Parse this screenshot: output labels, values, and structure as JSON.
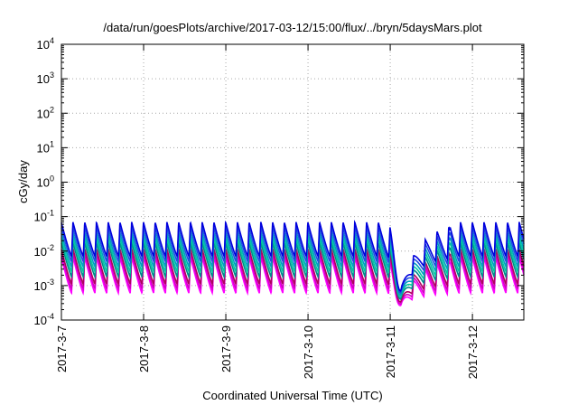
{
  "chart_data": {
    "type": "line",
    "title": "/data/run/goesPlots/archive/2017-03-12/15:00/flux/../bryn/5daysMars.plot",
    "xlabel": "Coordinated Universal Time (UTC)",
    "ylabel": "cGy/day",
    "x_range": [
      "2017-03-07 00:00",
      "2017-03-12 15:00"
    ],
    "ylim": [
      0.0001,
      10000
    ],
    "y_scale": "log",
    "grid": true,
    "x_ticks": [
      "2017-3-7",
      "2017-3-8",
      "2017-3-9",
      "2017-3-10",
      "2017-3-11",
      "2017-3-12"
    ],
    "y_ticks": [
      {
        "base": "10",
        "exp": "-4"
      },
      {
        "base": "10",
        "exp": "-3"
      },
      {
        "base": "10",
        "exp": "-2"
      },
      {
        "base": "10",
        "exp": "-1"
      },
      {
        "base": "10",
        "exp": "0"
      },
      {
        "base": "10",
        "exp": "1"
      },
      {
        "base": "10",
        "exp": "2"
      },
      {
        "base": "10",
        "exp": "3"
      },
      {
        "base": "10",
        "exp": "4"
      }
    ],
    "cycles_per_day": 7,
    "dip": {
      "time": "2017-03-11 03:00",
      "min_value": 0.00015
    },
    "series": [
      {
        "color": "#ff00ff",
        "peak": 0.007,
        "trough": 0.0006
      },
      {
        "color": "#d400c8",
        "peak": 0.009,
        "trough": 0.0008
      },
      {
        "color": "#b00060",
        "peak": 0.012,
        "trough": 0.0011
      },
      {
        "color": "#008b8b",
        "peak": 0.018,
        "trough": 0.0018
      },
      {
        "color": "#00c8a0",
        "peak": 0.025,
        "trough": 0.0025
      },
      {
        "color": "#00a0c0",
        "peak": 0.035,
        "trough": 0.0035
      },
      {
        "color": "#1e50e0",
        "peak": 0.05,
        "trough": 0.005
      },
      {
        "color": "#0000dd",
        "peak": 0.07,
        "trough": 0.007
      }
    ]
  }
}
